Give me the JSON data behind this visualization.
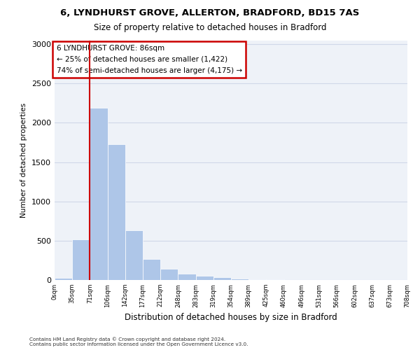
{
  "title_line1": "6, LYNDHURST GROVE, ALLERTON, BRADFORD, BD15 7AS",
  "title_line2": "Size of property relative to detached houses in Bradford",
  "xlabel": "Distribution of detached houses by size in Bradford",
  "ylabel": "Number of detached properties",
  "footnote": "Contains HM Land Registry data © Crown copyright and database right 2024.\nContains public sector information licensed under the Open Government Licence v3.0.",
  "bin_labels": [
    "0sqm",
    "35sqm",
    "71sqm",
    "106sqm",
    "142sqm",
    "177sqm",
    "212sqm",
    "248sqm",
    "283sqm",
    "319sqm",
    "354sqm",
    "389sqm",
    "425sqm",
    "460sqm",
    "496sqm",
    "531sqm",
    "566sqm",
    "602sqm",
    "637sqm",
    "673sqm",
    "708sqm"
  ],
  "bar_values": [
    25,
    520,
    2190,
    1730,
    630,
    270,
    140,
    80,
    50,
    40,
    15,
    10,
    5,
    3,
    2,
    1,
    0,
    0,
    0,
    0
  ],
  "bar_color": "#aec6e8",
  "grid_color": "#d0d8e8",
  "background_color": "#eef2f8",
  "annotation_text": "6 LYNDHURST GROVE: 86sqm\n← 25% of detached houses are smaller (1,422)\n74% of semi-detached houses are larger (4,175) →",
  "annotation_box_color": "#ffffff",
  "annotation_box_edge": "#cc0000",
  "ylim": [
    0,
    3050
  ],
  "red_line_color": "#cc0000",
  "red_line_x": 1.5
}
